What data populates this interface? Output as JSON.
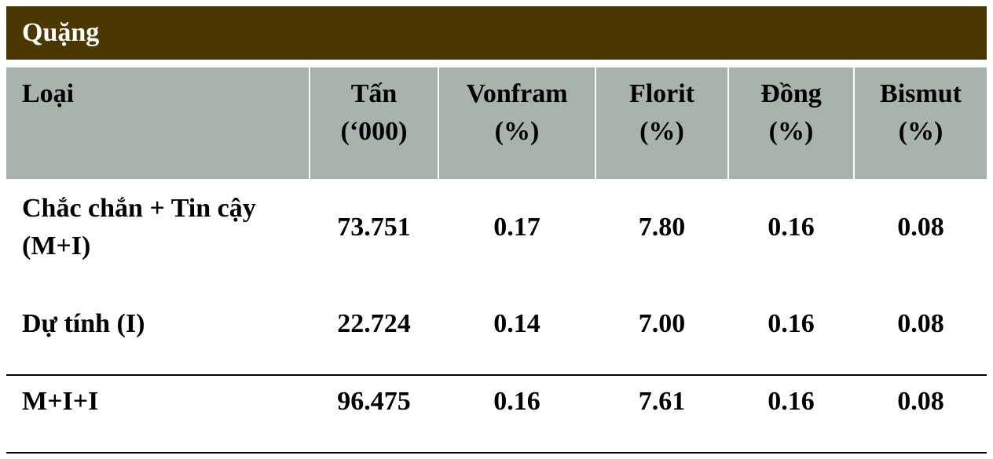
{
  "header": {
    "title": "Quặng"
  },
  "table": {
    "columns": [
      [
        "Loại"
      ],
      [
        "Tấn",
        "(‘000)"
      ],
      [
        "Vonfram",
        "(%)"
      ],
      [
        "Florit",
        "(%)"
      ],
      [
        "Đồng",
        "(%)"
      ],
      [
        "Bismut",
        "(%)"
      ]
    ],
    "rows": [
      [
        "Chắc chắn + Tin cậy (M+I)",
        "73.751",
        "0.17",
        "7.80",
        "0.16",
        "0.08"
      ],
      [
        "Dự tính (I)",
        "22.724",
        "0.14",
        "7.00",
        "0.16",
        "0.08"
      ],
      [
        "M+I+I",
        "96.475",
        "0.16",
        "7.61",
        "0.16",
        "0.08"
      ]
    ]
  }
}
